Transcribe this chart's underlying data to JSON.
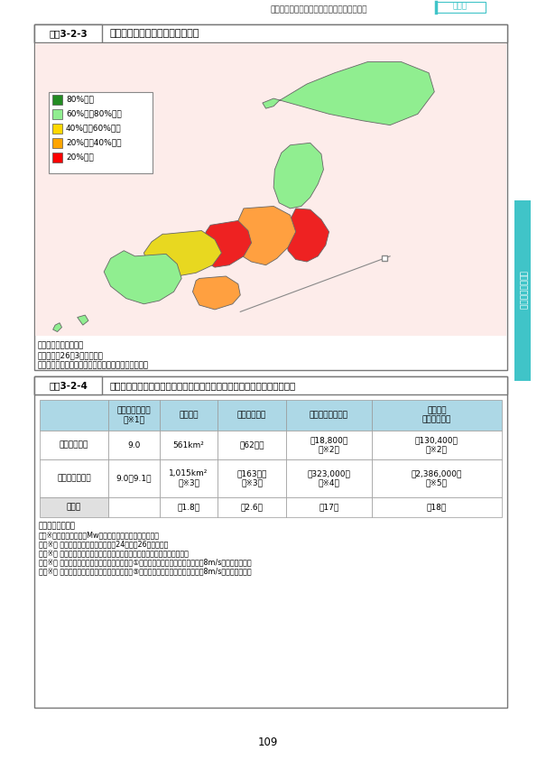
{
  "page_header_text": "自然災害の発生の可能性を踏まえた土地利用",
  "page_header_chapter": "第３章",
  "page_number": "109",
  "fig1_label": "図表3-2-3",
  "fig1_title": "地籍調査の進捗率（面積ベース）",
  "fig1_bg_color": "#fdecea",
  "fig1_legend": [
    {
      "color": "#228B22",
      "label": "80%以上"
    },
    {
      "color": "#90EE90",
      "label": "60%以上80%未満"
    },
    {
      "color": "#FFD700",
      "label": "40%以上60%未満"
    },
    {
      "color": "#FFA500",
      "label": "20%以上40%未満"
    },
    {
      "color": "#FF0000",
      "label": "20%未満"
    }
  ],
  "fig1_source": "資料：国土交通省資料",
  "fig1_note1": "注１：平成26年3月末時点。",
  "fig1_note2": "注２：我が国の領土を網羅的に記したものではない。",
  "fig2_label": "図表3-2-4",
  "fig2_title": "南海トラフ地震において被害が最大となるケースと東日本大震災との比較",
  "fig2_header_bg": "#ADD8E6",
  "fig2_headers": [
    "",
    "マグニチュード\n（※1）",
    "浸水面積",
    "浸水域内人口",
    "死者・行方不明者",
    "建物被害\n（全壊棟数）"
  ],
  "fig2_rows": [
    [
      "東日本大震災",
      "9.0",
      "561km²",
      "約62万人",
      "約18,800人\n（※2）",
      "約130,400棟\n（※2）"
    ],
    [
      "南海トラフ地震",
      "9.0（9.1）",
      "1,015km²\n（※3）",
      "約163万人\n（※3）",
      "約323,000人\n（※4）",
      "約2,386,000棟\n（※5）"
    ],
    [
      "比　較",
      "",
      "約1.8倍",
      "約2.6倍",
      "約17倍",
      "約18倍"
    ]
  ],
  "fig2_source": "資料：内閣府資料",
  "fig2_notes": [
    "注：※１（）内は津波のMw（モーメントマグニチュード）",
    "　　※２ 緊急災害対策本部発表（平成24年６月26日）の人数",
    "　　※３ 堤防・水門が地震動に対して正常に機能する場合の想定浸水区域。",
    "　　※４ 地震動（陸側）、津波ケース（ケース①）、時間帯（冬・深夜）、風速（8m/s）の場合の被害",
    "　　※５ 地震動（陸側）、津波ケース（ケース⑤）、時間帯（冬・夕方）、風速（8m/s）の場合の被害"
  ],
  "sidebar_color": "#40C4C8",
  "sidebar_text": "土地に関する動向",
  "japan_regions": {
    "hokkaido": {
      "color": "#90EE90",
      "polygons": [
        [
          310,
          390,
          420,
          450,
          460,
          440,
          420,
          390,
          360,
          330,
          310,
          290,
          280,
          285,
          300,
          310
        ],
        [
          270,
          270,
          265,
          270,
          275,
          270
        ]
      ],
      "y_polygons": [
        [
          295,
          305,
          310,
          295,
          270,
          255,
          240,
          240,
          250,
          270,
          285,
          290,
          295,
          300,
          300,
          295
        ],
        [
          285,
          280,
          275,
          270,
          275,
          285
        ]
      ]
    },
    "tohoku": {
      "color": "#90EE90",
      "x": [
        330,
        345,
        350,
        345,
        340,
        335,
        330,
        320,
        310,
        308,
        312,
        325,
        330
      ],
      "y": [
        235,
        230,
        218,
        205,
        195,
        185,
        178,
        180,
        190,
        205,
        220,
        235,
        235
      ]
    },
    "kanto": {
      "color": "#FF0000",
      "x": [
        330,
        345,
        355,
        358,
        355,
        345,
        335,
        325,
        320,
        322,
        328,
        330
      ],
      "y": [
        178,
        175,
        165,
        155,
        145,
        138,
        135,
        138,
        148,
        162,
        172,
        178
      ]
    },
    "chubu": {
      "color": "#FFA500",
      "x": [
        285,
        310,
        325,
        330,
        325,
        315,
        305,
        290,
        278,
        275,
        282,
        285
      ],
      "y": [
        175,
        178,
        170,
        158,
        145,
        138,
        132,
        135,
        145,
        158,
        168,
        175
      ]
    },
    "kinki": {
      "color": "#FF0000",
      "x": [
        255,
        280,
        290,
        292,
        285,
        272,
        260,
        250,
        248,
        252,
        255
      ],
      "y": [
        162,
        165,
        158,
        148,
        138,
        130,
        128,
        132,
        143,
        155,
        162
      ]
    },
    "chugoku": {
      "color": "#FFD700",
      "x": [
        215,
        248,
        258,
        262,
        255,
        240,
        225,
        210,
        200,
        195,
        200,
        210,
        215
      ],
      "y": [
        155,
        158,
        150,
        140,
        130,
        122,
        118,
        120,
        128,
        138,
        148,
        155,
        155
      ]
    },
    "shikoku": {
      "color": "#FFA500",
      "x": [
        240,
        265,
        275,
        278,
        270,
        255,
        242,
        238,
        240
      ],
      "y": [
        118,
        120,
        112,
        102,
        95,
        90,
        95,
        108,
        118
      ]
    },
    "kyushu": {
      "color": "#90EE90",
      "x": [
        188,
        215,
        222,
        225,
        218,
        205,
        190,
        175,
        165,
        162,
        168,
        180,
        188
      ],
      "y": [
        138,
        140,
        132,
        120,
        108,
        100,
        95,
        98,
        108,
        120,
        132,
        140,
        138
      ]
    },
    "ryukyu": {
      "color": "#90EE90",
      "x": [
        130,
        138,
        142,
        138,
        132,
        128,
        130
      ],
      "y": [
        82,
        84,
        78,
        72,
        70,
        76,
        82
      ]
    }
  }
}
